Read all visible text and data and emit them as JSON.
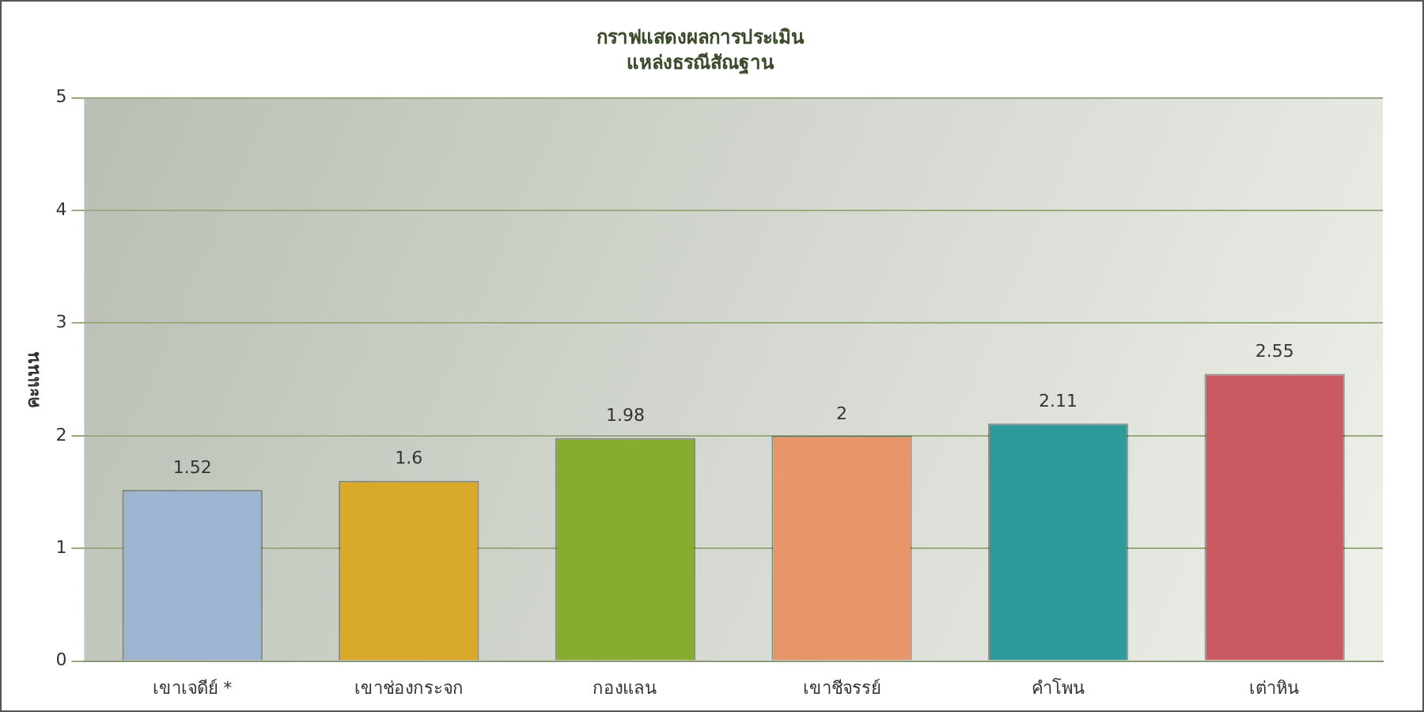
{
  "chart_data": {
    "type": "bar",
    "title": "กราฟแสดงผลการประเมิน",
    "subtitle": "แหล่งธรณีสัณฐาน",
    "ylabel": "คะแนน",
    "categories": [
      "เขาเจดีย์ *",
      "เขาช่องกระจก",
      "กองแลน",
      "เขาชีจรรย์",
      "คำโพน",
      "เต่าหิน"
    ],
    "values": [
      1.52,
      1.6,
      1.98,
      2,
      2.11,
      2.55
    ],
    "colors": [
      "#9db5d0",
      "#d9a92a",
      "#86ad2e",
      "#e8956a",
      "#2f9a9a",
      "#c95a62"
    ],
    "ylim": [
      0,
      5
    ],
    "yticks": [
      0,
      1,
      2,
      3,
      4,
      5
    ],
    "grid": "y",
    "data_labels": true,
    "legend": false
  }
}
